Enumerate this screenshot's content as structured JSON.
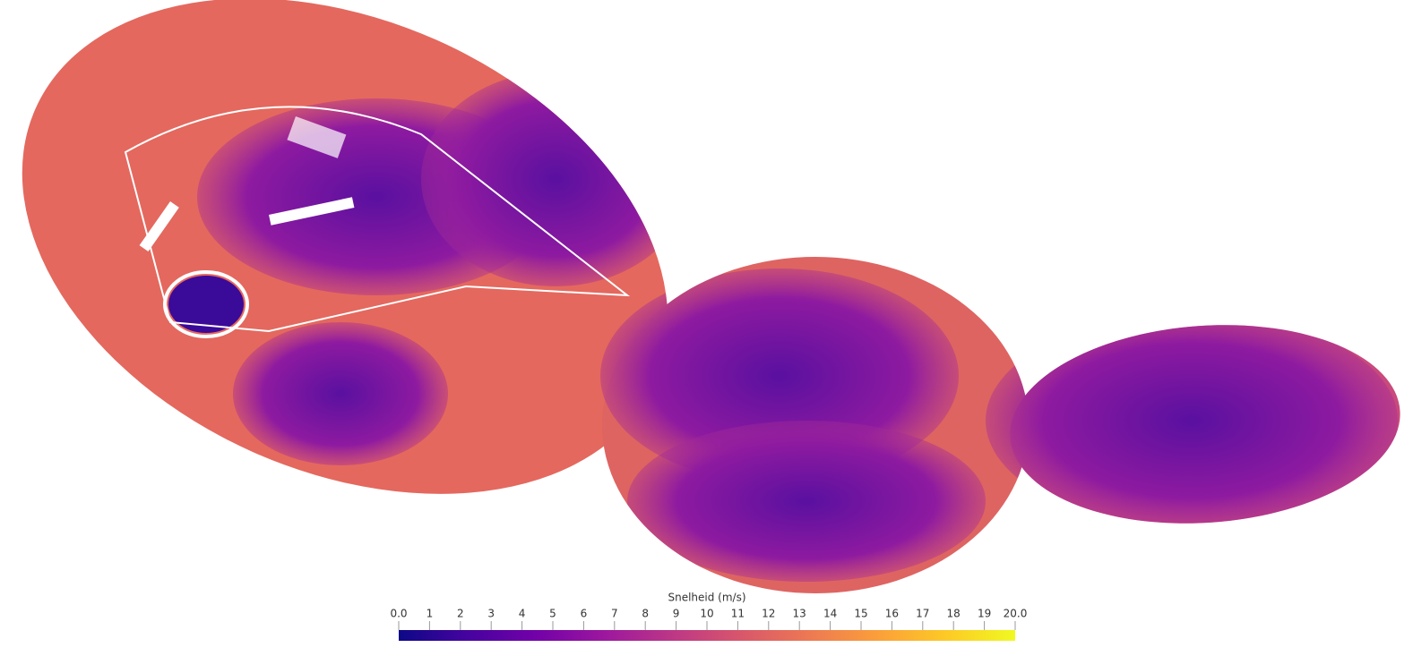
{
  "colorbar": {
    "title": "Snelheid (m/s)",
    "range": [
      0,
      20
    ],
    "ticks": [
      {
        "value": 0,
        "label": "0.0"
      },
      1,
      2,
      3,
      4,
      5,
      6,
      7,
      8,
      9,
      10,
      11,
      12,
      13,
      14,
      15,
      16,
      17,
      18,
      19,
      {
        "value": 20,
        "label": "20.0"
      }
    ],
    "colors": [
      "#0d0887",
      "#46039f",
      "#7201a8",
      "#9c179e",
      "#bd3786",
      "#d8576b",
      "#ed7953",
      "#fb9f3a",
      "#fdca26",
      "#f0f921"
    ]
  }
}
